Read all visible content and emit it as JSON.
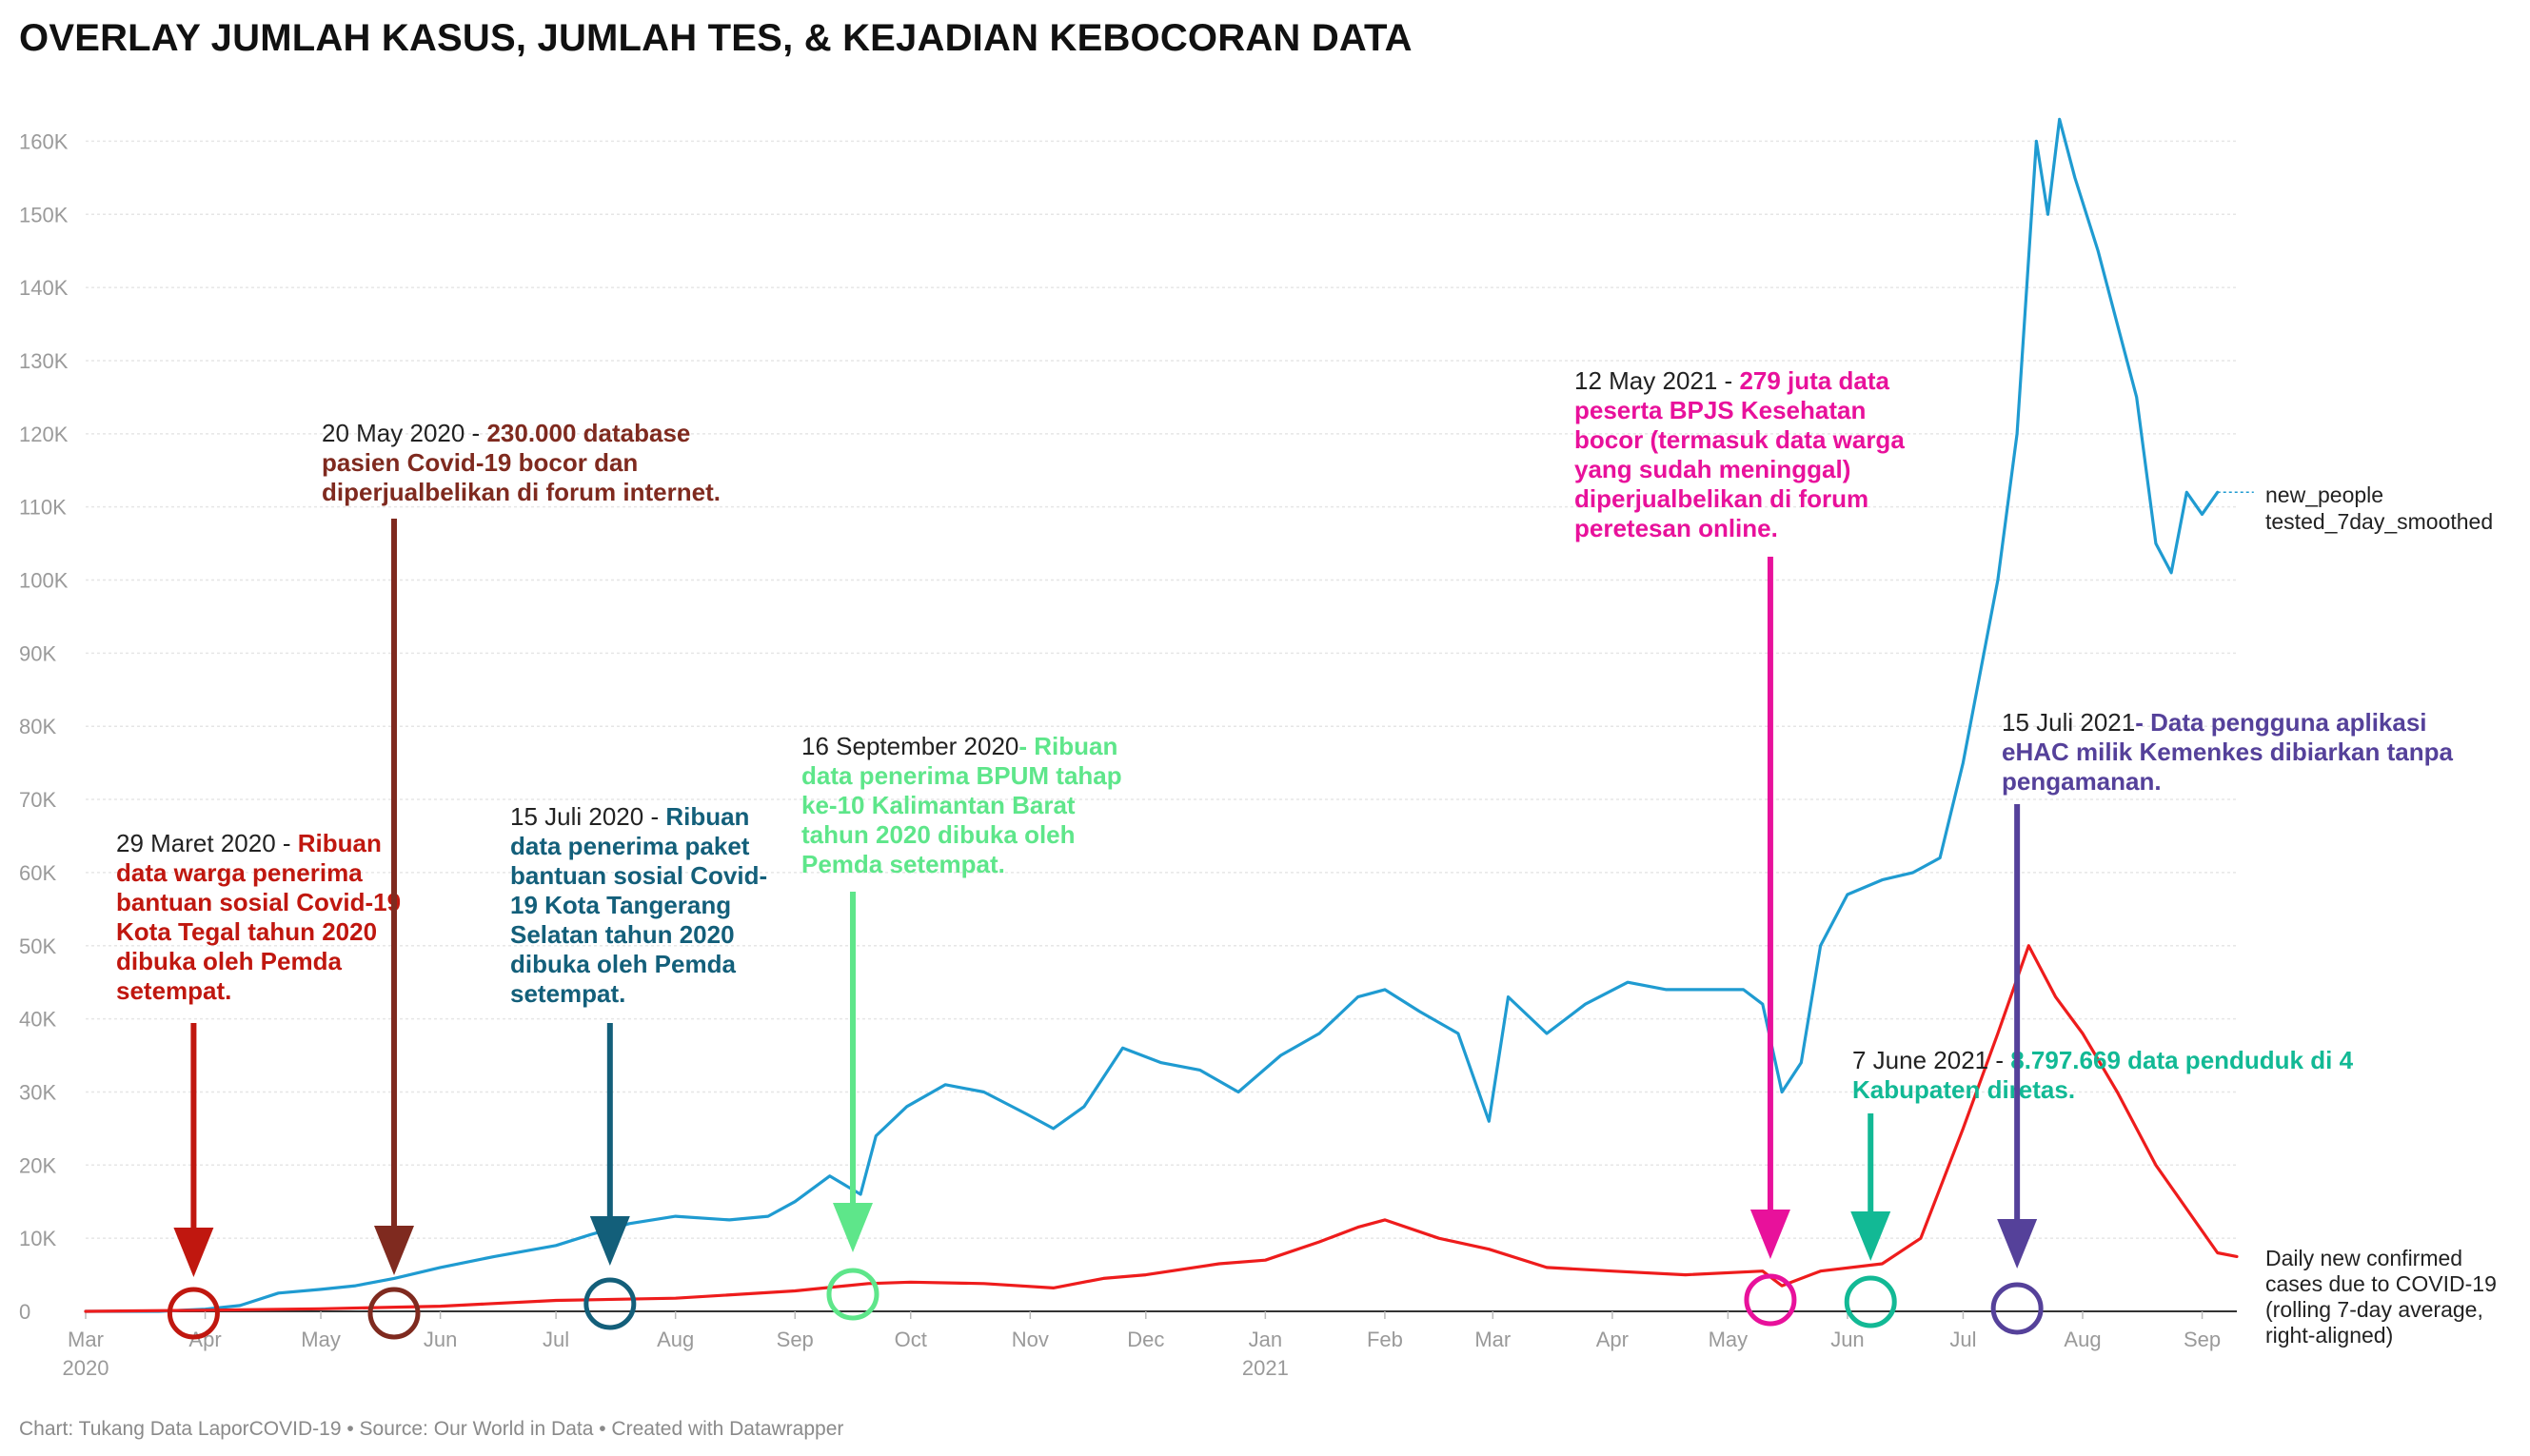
{
  "title": "OVERLAY JUMLAH KASUS, JUMLAH TES, & KEJADIAN KEBOCORAN DATA",
  "footer": "Chart: Tukang Data LaporCOVID-19 • Source: Our World in Data • Created with Datawrapper",
  "chart_data": {
    "type": "line",
    "title": "OVERLAY JUMLAH KASUS, JUMLAH TES, & KEJADIAN KEBOCORAN DATA",
    "xlabel": "",
    "ylabel": "",
    "x_range": [
      "2020-03-01",
      "2021-09-10"
    ],
    "ylim": [
      0,
      165000
    ],
    "grid": true,
    "y_ticks": [
      {
        "v": 0,
        "label": "0"
      },
      {
        "v": 10000,
        "label": "10K"
      },
      {
        "v": 20000,
        "label": "20K"
      },
      {
        "v": 30000,
        "label": "30K"
      },
      {
        "v": 40000,
        "label": "40K"
      },
      {
        "v": 50000,
        "label": "50K"
      },
      {
        "v": 60000,
        "label": "60K"
      },
      {
        "v": 70000,
        "label": "70K"
      },
      {
        "v": 80000,
        "label": "80K"
      },
      {
        "v": 90000,
        "label": "90K"
      },
      {
        "v": 100000,
        "label": "100K"
      },
      {
        "v": 110000,
        "label": "110K"
      },
      {
        "v": 120000,
        "label": "120K"
      },
      {
        "v": 130000,
        "label": "130K"
      },
      {
        "v": 140000,
        "label": "140K"
      },
      {
        "v": 150000,
        "label": "150K"
      },
      {
        "v": 160000,
        "label": "160K"
      }
    ],
    "x_ticks": [
      {
        "date": "2020-03-01",
        "label": "Mar",
        "year": "2020"
      },
      {
        "date": "2020-04-01",
        "label": "Apr"
      },
      {
        "date": "2020-05-01",
        "label": "May"
      },
      {
        "date": "2020-06-01",
        "label": "Jun"
      },
      {
        "date": "2020-07-01",
        "label": "Jul"
      },
      {
        "date": "2020-08-01",
        "label": "Aug"
      },
      {
        "date": "2020-09-01",
        "label": "Sep"
      },
      {
        "date": "2020-10-01",
        "label": "Oct"
      },
      {
        "date": "2020-11-01",
        "label": "Nov"
      },
      {
        "date": "2020-12-01",
        "label": "Dec"
      },
      {
        "date": "2021-01-01",
        "label": "Jan",
        "year": "2021"
      },
      {
        "date": "2021-02-01",
        "label": "Feb"
      },
      {
        "date": "2021-03-01",
        "label": "Mar"
      },
      {
        "date": "2021-04-01",
        "label": "Apr"
      },
      {
        "date": "2021-05-01",
        "label": "May"
      },
      {
        "date": "2021-06-01",
        "label": "Jun"
      },
      {
        "date": "2021-07-01",
        "label": "Jul"
      },
      {
        "date": "2021-08-01",
        "label": "Aug"
      },
      {
        "date": "2021-09-01",
        "label": "Sep"
      }
    ],
    "series": [
      {
        "name": "new_people tested_7day_smoothed",
        "label_lines": [
          "new_people",
          "tested_7day_smoothed"
        ],
        "color": "#1f9bd1",
        "points": [
          [
            "2020-03-01",
            0
          ],
          [
            "2020-03-20",
            0
          ],
          [
            "2020-04-01",
            300
          ],
          [
            "2020-04-10",
            800
          ],
          [
            "2020-04-20",
            2500
          ],
          [
            "2020-05-01",
            3000
          ],
          [
            "2020-05-10",
            3500
          ],
          [
            "2020-05-20",
            4500
          ],
          [
            "2020-06-01",
            6000
          ],
          [
            "2020-06-15",
            7500
          ],
          [
            "2020-07-01",
            9000
          ],
          [
            "2020-07-10",
            10500
          ],
          [
            "2020-07-20",
            12000
          ],
          [
            "2020-08-01",
            13000
          ],
          [
            "2020-08-15",
            12500
          ],
          [
            "2020-08-25",
            13000
          ],
          [
            "2020-09-01",
            15000
          ],
          [
            "2020-09-10",
            18500
          ],
          [
            "2020-09-18",
            16000
          ],
          [
            "2020-09-22",
            24000
          ],
          [
            "2020-09-30",
            28000
          ],
          [
            "2020-10-10",
            31000
          ],
          [
            "2020-10-20",
            30000
          ],
          [
            "2020-10-31",
            27000
          ],
          [
            "2020-11-07",
            25000
          ],
          [
            "2020-11-15",
            28000
          ],
          [
            "2020-11-25",
            36000
          ],
          [
            "2020-12-05",
            34000
          ],
          [
            "2020-12-15",
            33000
          ],
          [
            "2020-12-25",
            30000
          ],
          [
            "2021-01-05",
            35000
          ],
          [
            "2021-01-15",
            38000
          ],
          [
            "2021-01-25",
            43000
          ],
          [
            "2021-02-01",
            44000
          ],
          [
            "2021-02-10",
            41000
          ],
          [
            "2021-02-20",
            38000
          ],
          [
            "2021-02-28",
            26000
          ],
          [
            "2021-03-05",
            43000
          ],
          [
            "2021-03-15",
            38000
          ],
          [
            "2021-03-25",
            42000
          ],
          [
            "2021-04-05",
            45000
          ],
          [
            "2021-04-15",
            44000
          ],
          [
            "2021-04-25",
            44000
          ],
          [
            "2021-05-05",
            44000
          ],
          [
            "2021-05-10",
            42000
          ],
          [
            "2021-05-15",
            30000
          ],
          [
            "2021-05-20",
            34000
          ],
          [
            "2021-05-25",
            50000
          ],
          [
            "2021-06-01",
            57000
          ],
          [
            "2021-06-10",
            59000
          ],
          [
            "2021-06-18",
            60000
          ],
          [
            "2021-06-25",
            62000
          ],
          [
            "2021-07-01",
            75000
          ],
          [
            "2021-07-10",
            100000
          ],
          [
            "2021-07-15",
            120000
          ],
          [
            "2021-07-20",
            160000
          ],
          [
            "2021-07-23",
            150000
          ],
          [
            "2021-07-26",
            163000
          ],
          [
            "2021-07-30",
            155000
          ],
          [
            "2021-08-05",
            145000
          ],
          [
            "2021-08-10",
            135000
          ],
          [
            "2021-08-15",
            125000
          ],
          [
            "2021-08-20",
            105000
          ],
          [
            "2021-08-24",
            101000
          ],
          [
            "2021-08-28",
            112000
          ],
          [
            "2021-09-01",
            109000
          ],
          [
            "2021-09-05",
            112000
          ]
        ]
      },
      {
        "name": "Daily new confirmed cases due to COVID-19 (rolling 7-day average, right-aligned)",
        "label_lines": [
          "Daily new confirmed",
          "cases due to COVID-19",
          "(rolling 7-day average,",
          "right-aligned)"
        ],
        "color": "#ee1c1c",
        "points": [
          [
            "2020-03-01",
            0
          ],
          [
            "2020-04-01",
            150
          ],
          [
            "2020-05-01",
            350
          ],
          [
            "2020-06-01",
            700
          ],
          [
            "2020-07-01",
            1500
          ],
          [
            "2020-08-01",
            1800
          ],
          [
            "2020-09-01",
            2800
          ],
          [
            "2020-09-20",
            3800
          ],
          [
            "2020-10-01",
            4000
          ],
          [
            "2020-10-20",
            3800
          ],
          [
            "2020-11-07",
            3200
          ],
          [
            "2020-11-20",
            4500
          ],
          [
            "2020-12-01",
            5000
          ],
          [
            "2020-12-20",
            6500
          ],
          [
            "2021-01-01",
            7000
          ],
          [
            "2021-01-15",
            9500
          ],
          [
            "2021-01-25",
            11500
          ],
          [
            "2021-02-01",
            12500
          ],
          [
            "2021-02-15",
            10000
          ],
          [
            "2021-02-28",
            8500
          ],
          [
            "2021-03-15",
            6000
          ],
          [
            "2021-04-01",
            5500
          ],
          [
            "2021-04-20",
            5000
          ],
          [
            "2021-05-10",
            5500
          ],
          [
            "2021-05-15",
            3500
          ],
          [
            "2021-05-25",
            5500
          ],
          [
            "2021-06-10",
            6500
          ],
          [
            "2021-06-20",
            10000
          ],
          [
            "2021-07-01",
            25000
          ],
          [
            "2021-07-10",
            38000
          ],
          [
            "2021-07-18",
            50000
          ],
          [
            "2021-07-25",
            43000
          ],
          [
            "2021-08-01",
            38000
          ],
          [
            "2021-08-10",
            30000
          ],
          [
            "2021-08-20",
            20000
          ],
          [
            "2021-08-28",
            14000
          ],
          [
            "2021-09-05",
            8000
          ],
          [
            "2021-09-10",
            7500
          ]
        ]
      }
    ],
    "annotations": [
      {
        "id": "ann-1",
        "date_label": "29 Maret 2020",
        "body": "Ribuan data warga penerima bantuan sosial Covid-19 Kota Tegal tahun 2020 dibuka oleh Pemda setempat.",
        "color": "#c0170f",
        "marker_date": "2020-03-29",
        "text_lines": [
          [
            "29 Maret 2020 - ",
            "Ribuan"
          ],
          [
            "",
            "data warga penerima"
          ],
          [
            "",
            "bantuan sosial Covid-19"
          ],
          [
            "",
            "Kota Tegal tahun 2020"
          ],
          [
            "",
            "dibuka oleh Pemda"
          ],
          [
            "",
            "setempat."
          ]
        ]
      },
      {
        "id": "ann-2",
        "date_label": "20 May 2020",
        "body": "230.000 database pasien Covid-19 bocor dan diperjualbelikan di forum internet.",
        "color": "#7f2a1f",
        "marker_date": "2020-05-20",
        "text_lines": [
          [
            "20 May 2020 - ",
            "230.000 database"
          ],
          [
            "",
            "pasien Covid-19 bocor dan"
          ],
          [
            "",
            "diperjualbelikan di forum internet."
          ]
        ]
      },
      {
        "id": "ann-3",
        "date_label": "15 Juli 2020",
        "body": "Ribuan data penerima paket bantuan sosial Covid-19 Kota Tangerang Selatan tahun 2020 dibuka oleh Pemda setempat.",
        "color": "#135f7a",
        "marker_date": "2020-07-15",
        "text_lines": [
          [
            "15 Juli 2020 - ",
            "Ribuan"
          ],
          [
            "",
            "data penerima paket"
          ],
          [
            "",
            "bantuan sosial Covid-"
          ],
          [
            "",
            "19 Kota Tangerang"
          ],
          [
            "",
            "Selatan tahun 2020"
          ],
          [
            "",
            "dibuka oleh Pemda"
          ],
          [
            "",
            "setempat."
          ]
        ]
      },
      {
        "id": "ann-4",
        "date_label": "16 September 2020",
        "body": "Ribuan data penerima BPUM tahap ke-10 Kalimantan Barat tahun 2020 dibuka oleh Pemda setempat.",
        "color": "#5ee68a",
        "marker_date": "2020-09-16",
        "text_lines": [
          [
            "16 September 2020",
            "- Ribuan"
          ],
          [
            "",
            "data penerima BPUM tahap"
          ],
          [
            "",
            "ke-10 Kalimantan Barat"
          ],
          [
            "",
            "tahun 2020 dibuka oleh"
          ],
          [
            "",
            "Pemda setempat."
          ]
        ]
      },
      {
        "id": "ann-5",
        "date_label": "12 May 2021",
        "body": "279 juta data peserta BPJS Kesehatan bocor (termasuk data warga yang sudah meninggal) diperjualbelikan di forum peretesan online.",
        "color": "#e8119b",
        "marker_date": "2021-05-12",
        "text_lines": [
          [
            "12 May 2021 - ",
            "279 juta data"
          ],
          [
            "",
            "peserta BPJS Kesehatan"
          ],
          [
            "",
            "bocor (termasuk data warga"
          ],
          [
            "",
            "yang sudah meninggal)"
          ],
          [
            "",
            "diperjualbelikan di forum"
          ],
          [
            "",
            "peretesan online."
          ]
        ]
      },
      {
        "id": "ann-6",
        "date_label": "7 June 2021",
        "body": "8.797.669 data penduduk di 4 Kabupaten diretas.",
        "color": "#12b995",
        "marker_date": "2021-06-07",
        "text_lines": [
          [
            "7 June 2021 - ",
            "8.797.669 data penduduk di 4"
          ],
          [
            "",
            "Kabupaten diretas."
          ]
        ]
      },
      {
        "id": "ann-7",
        "date_label": "15 Juli 2021",
        "body": "Data pengguna aplikasi eHAC milik Kemenkes dibiarkan tanpa pengamanan.",
        "color": "#55419a",
        "marker_date": "2021-07-15",
        "text_lines": [
          [
            "15 Juli 2021",
            "- Data pengguna aplikasi"
          ],
          [
            "",
            "eHAC milik Kemenkes dibiarkan tanpa"
          ],
          [
            "",
            "pengamanan."
          ]
        ]
      }
    ]
  }
}
